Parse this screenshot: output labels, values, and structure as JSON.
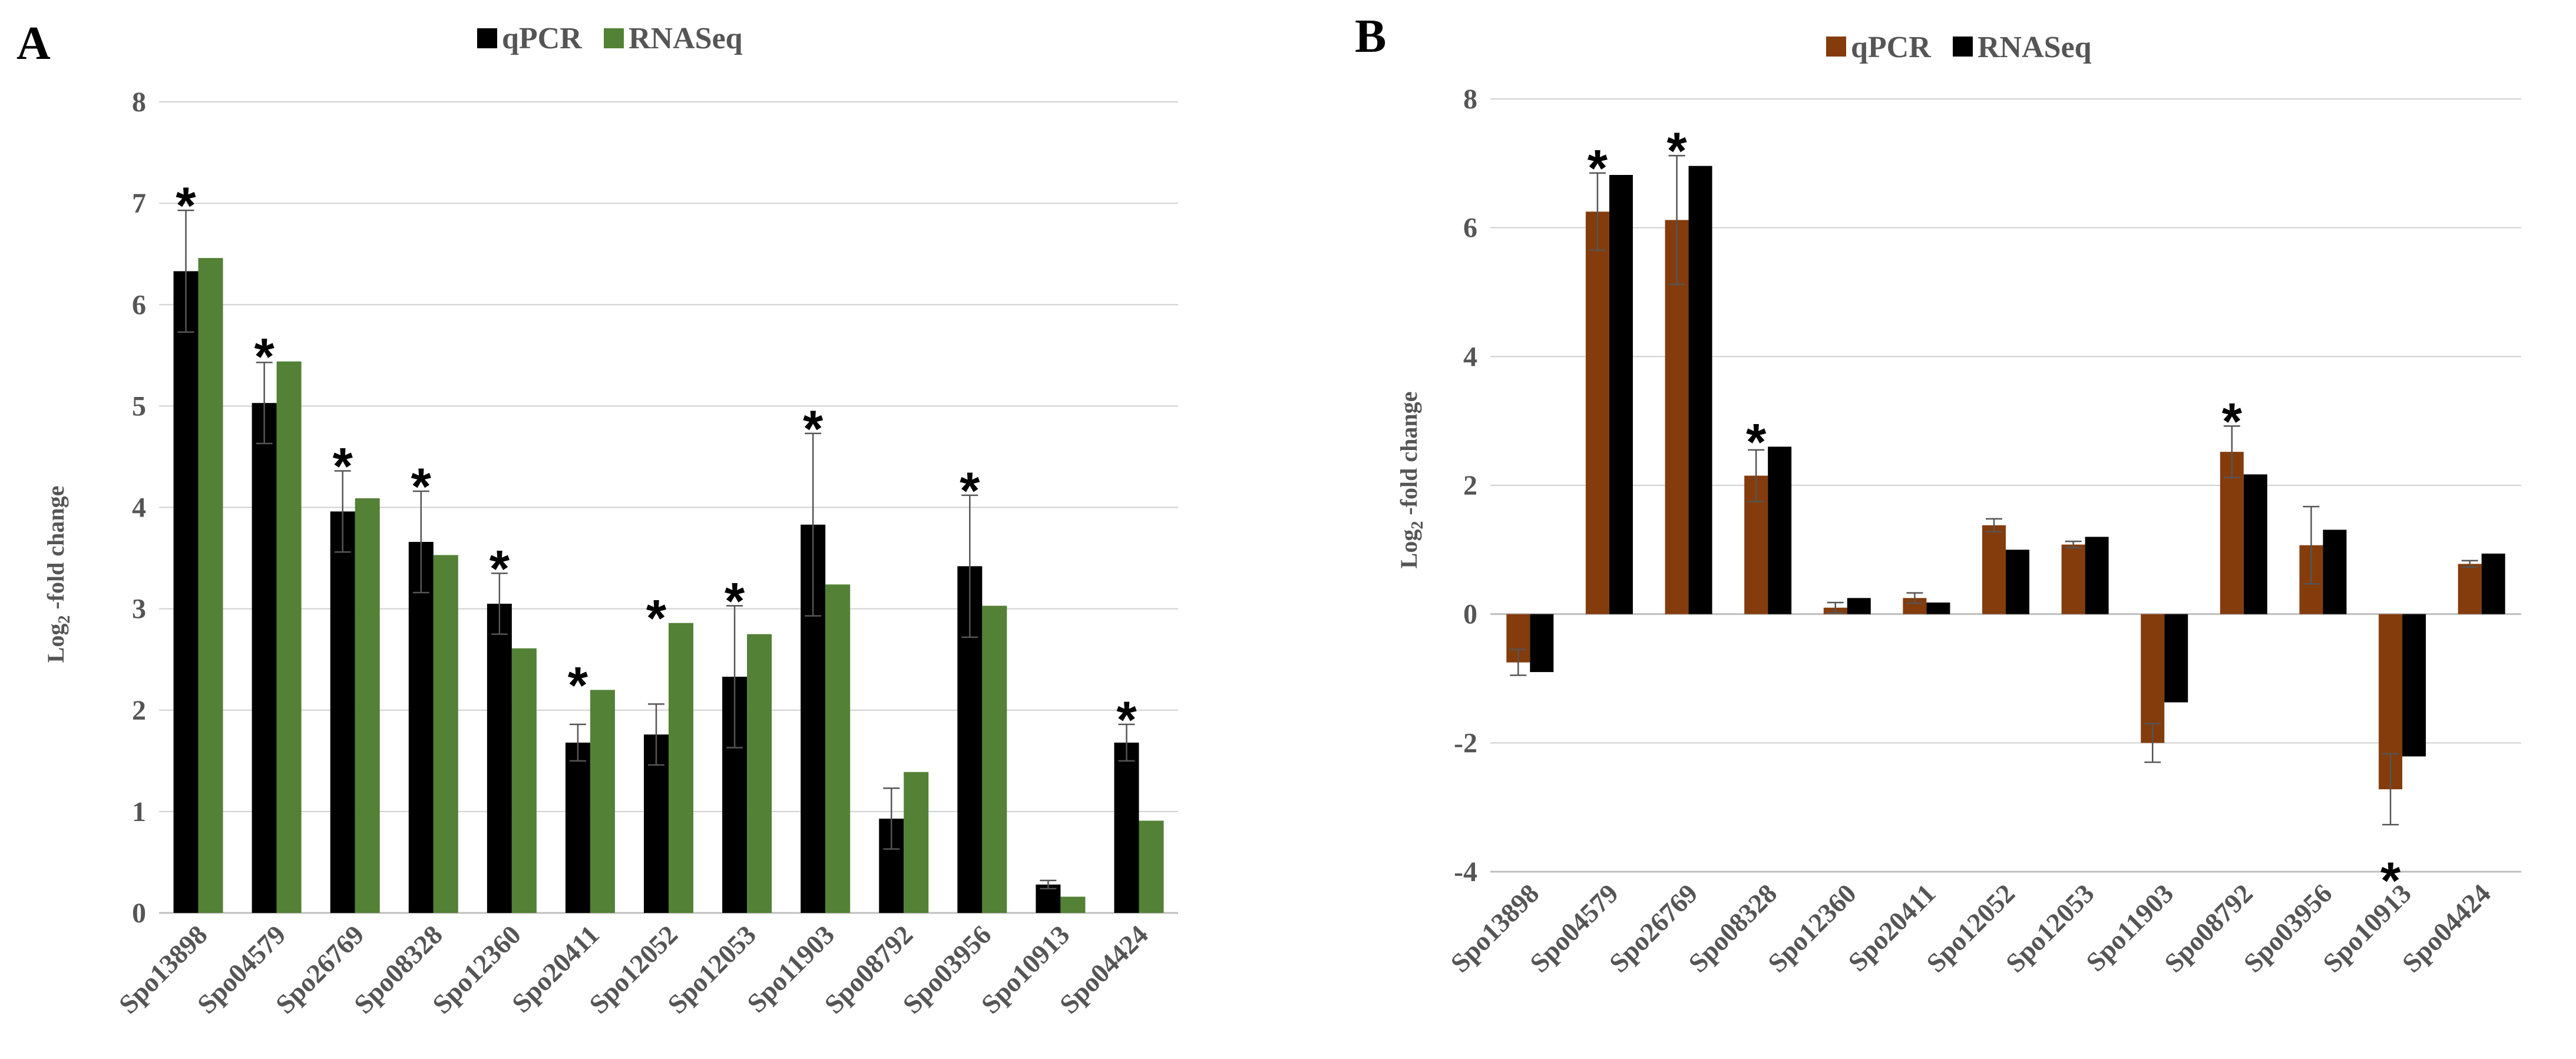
{
  "chart_data": [
    {
      "type": "bar",
      "panel_label": "A",
      "ylabel": "Log2 -fold change",
      "ylim": [
        0,
        8
      ],
      "yticks": [
        0,
        1,
        2,
        3,
        4,
        5,
        6,
        7,
        8
      ],
      "grid": true,
      "legend_position": "top-center",
      "categories": [
        "Spo13898",
        "Spo04579",
        "Spo26769",
        "Spo08328",
        "Spo12360",
        "Spo20411",
        "Spo12052",
        "Spo12053",
        "Spo11903",
        "Spo08792",
        "Spo03956",
        "Spo10913",
        "Spo04424"
      ],
      "series": [
        {
          "name": "qPCR",
          "color": "#000000",
          "values": [
            6.33,
            5.03,
            3.96,
            3.66,
            3.05,
            1.68,
            1.76,
            2.33,
            3.83,
            0.93,
            3.42,
            0.28,
            1.68
          ],
          "errors": [
            0.6,
            0.4,
            0.4,
            0.5,
            0.3,
            0.18,
            0.3,
            0.7,
            0.9,
            0.3,
            0.7,
            0.04,
            0.18
          ]
        },
        {
          "name": "RNASeq",
          "color": "#538135",
          "values": [
            6.46,
            5.44,
            4.09,
            3.53,
            2.61,
            2.2,
            2.86,
            2.75,
            3.24,
            1.39,
            3.03,
            0.16,
            0.91
          ]
        }
      ],
      "significant": [
        true,
        true,
        true,
        true,
        true,
        true,
        true,
        true,
        true,
        false,
        true,
        false,
        true
      ],
      "star_below": [
        false,
        false,
        false,
        false,
        false,
        false,
        false,
        false,
        false,
        false,
        false,
        false,
        false
      ]
    },
    {
      "type": "bar",
      "panel_label": "B",
      "ylabel": "Log2 -fold change",
      "ylim": [
        -4,
        8
      ],
      "yticks": [
        -4,
        -2,
        0,
        2,
        4,
        6,
        8
      ],
      "grid": true,
      "legend_position": "top-center",
      "categories": [
        "Spo13898",
        "Spo04579",
        "Spo26769",
        "Spo08328",
        "Spo12360",
        "Spo20411",
        "Spo12052",
        "Spo12053",
        "Spo11903",
        "Spo08792",
        "Spo03956",
        "Spo10913",
        "Spo04424"
      ],
      "series": [
        {
          "name": "qPCR",
          "color": "#843C0C",
          "values": [
            -0.75,
            6.25,
            6.12,
            2.15,
            0.1,
            0.25,
            1.38,
            1.08,
            -2.0,
            2.52,
            1.07,
            -2.72,
            0.78
          ],
          "errors": [
            0.2,
            0.6,
            1.0,
            0.4,
            0.08,
            0.08,
            0.1,
            0.05,
            0.3,
            0.4,
            0.6,
            0.55,
            0.05
          ]
        },
        {
          "name": "RNASeq",
          "color": "#000000",
          "values": [
            -0.9,
            6.82,
            6.96,
            2.6,
            0.25,
            0.18,
            1.0,
            1.2,
            -1.37,
            2.17,
            1.31,
            -2.21,
            0.94
          ]
        }
      ],
      "significant": [
        false,
        true,
        true,
        true,
        false,
        false,
        false,
        false,
        false,
        true,
        false,
        true,
        false
      ],
      "star_below": [
        false,
        false,
        false,
        false,
        false,
        false,
        false,
        false,
        false,
        false,
        false,
        true,
        false
      ]
    }
  ]
}
